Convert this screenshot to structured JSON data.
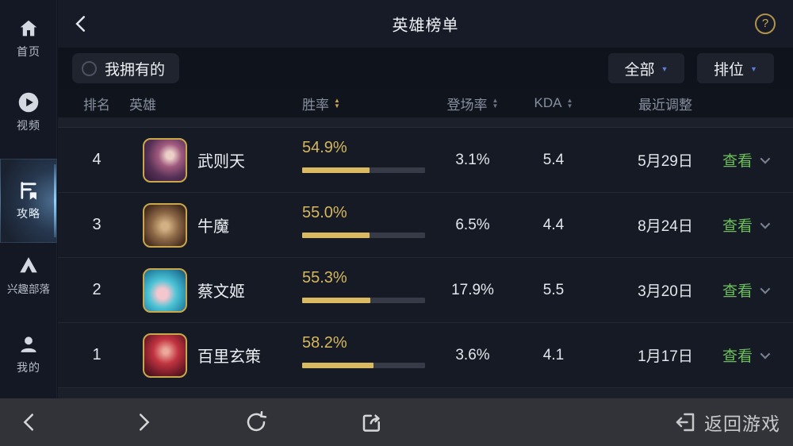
{
  "header": {
    "title": "英雄榜单",
    "help_glyph": "?"
  },
  "sidebar": {
    "items": [
      {
        "label": "首页",
        "active": false
      },
      {
        "label": "视频",
        "active": false
      },
      {
        "label": "攻略",
        "active": true
      },
      {
        "label": "兴趣部落",
        "active": false
      },
      {
        "label": "我的",
        "active": false
      }
    ]
  },
  "filters": {
    "owned_label": "我拥有的",
    "category_dropdown": "全部",
    "mode_dropdown": "排位",
    "dropdown_glyph": "▼"
  },
  "table": {
    "columns": {
      "rank": "排名",
      "hero": "英雄",
      "win_rate": "胜率",
      "pick_rate": "登场率",
      "kda": "KDA",
      "adjusted": "最近调整"
    },
    "sort_glyphs": {
      "asc": "▲",
      "desc": "▼"
    },
    "sorted_by": "胜率",
    "rows": [
      {
        "rank": "4",
        "hero": "武则天",
        "win_rate": "54.9%",
        "win_rate_pct": 54.9,
        "pick_rate": "3.1%",
        "kda": "5.4",
        "adjusted": "5月29日",
        "action": "查看"
      },
      {
        "rank": "3",
        "hero": "牛魔",
        "win_rate": "55.0%",
        "win_rate_pct": 55.0,
        "pick_rate": "6.5%",
        "kda": "4.4",
        "adjusted": "8月24日",
        "action": "查看"
      },
      {
        "rank": "2",
        "hero": "蔡文姬",
        "win_rate": "55.3%",
        "win_rate_pct": 55.3,
        "pick_rate": "17.9%",
        "kda": "5.5",
        "adjusted": "3月20日",
        "action": "查看"
      },
      {
        "rank": "1",
        "hero": "百里玄策",
        "win_rate": "58.2%",
        "win_rate_pct": 58.2,
        "pick_rate": "3.6%",
        "kda": "4.1",
        "adjusted": "1月17日",
        "action": "查看"
      }
    ]
  },
  "bottom_bar": {
    "return_label": "返回游戏"
  },
  "colors": {
    "gold": "#d5b75f",
    "green": "#6dbf5c",
    "accent_blue": "#5b7fd8",
    "active_glow": "#8fd0ff"
  }
}
